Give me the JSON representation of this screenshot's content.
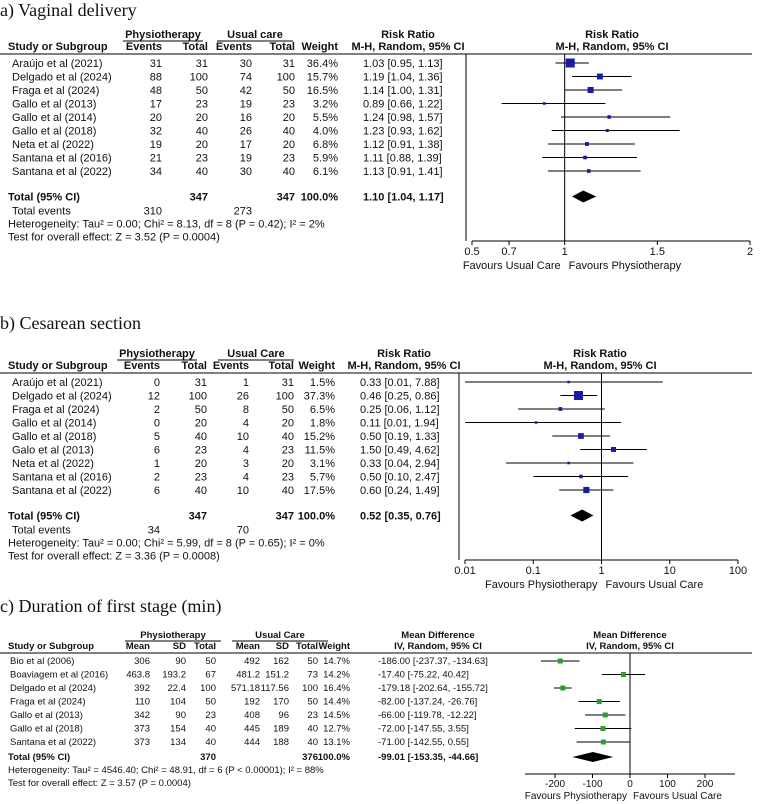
{
  "chart_data": [
    {
      "type": "forest",
      "title": "a) Vaginal delivery",
      "group1": "Physiotherapy",
      "group2": "Usual care",
      "headers": {
        "study": "Study or Subgroup",
        "events": "Events",
        "total": "Total",
        "weight": "Weight",
        "rr_title": "Risk Ratio",
        "rr_method": "M-H, Random, 95% CI"
      },
      "rows": [
        {
          "study": "Araújo et al (2021)",
          "e1": "31",
          "t1": "31",
          "e2": "30",
          "t2": "31",
          "weight": "36.4%",
          "ci_text": "1.03 [0.95, 1.13]",
          "est": 1.03,
          "lo": 0.95,
          "hi": 1.13,
          "w": 36.4
        },
        {
          "study": "Delgado et al (2024)",
          "e1": "88",
          "t1": "100",
          "e2": "74",
          "t2": "100",
          "weight": "15.7%",
          "ci_text": "1.19 [1.04, 1.36]",
          "est": 1.19,
          "lo": 1.04,
          "hi": 1.36,
          "w": 15.7
        },
        {
          "study": "Fraga et al (2024)",
          "e1": "48",
          "t1": "50",
          "e2": "42",
          "t2": "50",
          "weight": "16.5%",
          "ci_text": "1.14 [1.00, 1.31]",
          "est": 1.14,
          "lo": 1.0,
          "hi": 1.31,
          "w": 16.5
        },
        {
          "study": "Gallo et al (2013)",
          "e1": "17",
          "t1": "23",
          "e2": "19",
          "t2": "23",
          "weight": "3.2%",
          "ci_text": "0.89 [0.66, 1.22]",
          "est": 0.89,
          "lo": 0.66,
          "hi": 1.22,
          "w": 3.2
        },
        {
          "study": "Gallo et al (2014)",
          "e1": "20",
          "t1": "20",
          "e2": "16",
          "t2": "20",
          "weight": "5.5%",
          "ci_text": "1.24 [0.98, 1.57]",
          "est": 1.24,
          "lo": 0.98,
          "hi": 1.57,
          "w": 5.5
        },
        {
          "study": "Gallo et al (2018)",
          "e1": "32",
          "t1": "40",
          "e2": "26",
          "t2": "40",
          "weight": "4.0%",
          "ci_text": "1.23 [0.93, 1.62]",
          "est": 1.23,
          "lo": 0.93,
          "hi": 1.62,
          "w": 4.0
        },
        {
          "study": "Neta et al (2022)",
          "e1": "19",
          "t1": "20",
          "e2": "17",
          "t2": "20",
          "weight": "6.8%",
          "ci_text": "1.12 [0.91, 1.38]",
          "est": 1.12,
          "lo": 0.91,
          "hi": 1.38,
          "w": 6.8
        },
        {
          "study": "Santana et al (2016)",
          "e1": "21",
          "t1": "23",
          "e2": "19",
          "t2": "23",
          "weight": "5.9%",
          "ci_text": "1.11 [0.88, 1.39]",
          "est": 1.11,
          "lo": 0.88,
          "hi": 1.39,
          "w": 5.9
        },
        {
          "study": "Santana et al (2022)",
          "e1": "34",
          "t1": "40",
          "e2": "30",
          "t2": "40",
          "weight": "6.1%",
          "ci_text": "1.13 [0.91, 1.41]",
          "est": 1.13,
          "lo": 0.91,
          "hi": 1.41,
          "w": 6.1
        }
      ],
      "total": {
        "label": "Total (95% CI)",
        "t1": "347",
        "t2": "347",
        "weight": "100.0%",
        "ci_text": "1.10 [1.04, 1.17]",
        "est": 1.1,
        "lo": 1.04,
        "hi": 1.17
      },
      "total_events": {
        "label": "Total events",
        "e1": "310",
        "e2": "273"
      },
      "heterogeneity": "Heterogeneity: Tau² = 0.00; Chi² = 8.13, df = 8 (P = 0.42); I² = 2%",
      "overall": "Test for overall effect: Z = 3.52 (P = 0.0004)",
      "axis": {
        "scale": "linear",
        "min": 0.5,
        "max": 2,
        "ticks": [
          0.5,
          0.7,
          1,
          1.5,
          2
        ],
        "tick_labels": [
          "0.5",
          "0.7",
          "1",
          "1.5",
          "2"
        ],
        "null": 1
      },
      "favours_left": "Favours Usual Care",
      "favours_right": "Favours Physiotherapy"
    },
    {
      "type": "forest",
      "title": "b) Cesarean section",
      "group1": "Physiotherapy",
      "group2": "Usual Care",
      "headers": {
        "study": "Study or Subgroup",
        "events": "Events",
        "total": "Total",
        "weight": "Weight",
        "rr_title": "Risk Ratio",
        "rr_method": "M-H, Random, 95% CI"
      },
      "rows": [
        {
          "study": "Araújo et al (2021)",
          "e1": "0",
          "t1": "31",
          "e2": "1",
          "t2": "31",
          "weight": "1.5%",
          "ci_text": "0.33 [0.01, 7.88]",
          "est": 0.33,
          "lo": 0.01,
          "hi": 7.88,
          "w": 1.5
        },
        {
          "study": "Delgado et al (2024)",
          "e1": "12",
          "t1": "100",
          "e2": "26",
          "t2": "100",
          "weight": "37.3%",
          "ci_text": "0.46 [0.25, 0.86]",
          "est": 0.46,
          "lo": 0.25,
          "hi": 0.86,
          "w": 37.3
        },
        {
          "study": "Fraga et al (2024)",
          "e1": "2",
          "t1": "50",
          "e2": "8",
          "t2": "50",
          "weight": "6.5%",
          "ci_text": "0.25 [0.06, 1.12]",
          "est": 0.25,
          "lo": 0.06,
          "hi": 1.12,
          "w": 6.5
        },
        {
          "study": "Gallo et al (2014)",
          "e1": "0",
          "t1": "20",
          "e2": "4",
          "t2": "20",
          "weight": "1.8%",
          "ci_text": "0.11 [0.01, 1.94]",
          "est": 0.11,
          "lo": 0.01,
          "hi": 1.94,
          "w": 1.8
        },
        {
          "study": "Gallo et al (2018)",
          "e1": "5",
          "t1": "40",
          "e2": "10",
          "t2": "40",
          "weight": "15.2%",
          "ci_text": "0.50 [0.19, 1.33]",
          "est": 0.5,
          "lo": 0.19,
          "hi": 1.33,
          "w": 15.2
        },
        {
          "study": "Galo et al (2013)",
          "e1": "6",
          "t1": "23",
          "e2": "4",
          "t2": "23",
          "weight": "11.5%",
          "ci_text": "1.50 [0.49, 4.62]",
          "est": 1.5,
          "lo": 0.49,
          "hi": 4.62,
          "w": 11.5
        },
        {
          "study": "Neta et al (2022)",
          "e1": "1",
          "t1": "20",
          "e2": "3",
          "t2": "20",
          "weight": "3.1%",
          "ci_text": "0.33 [0.04, 2.94]",
          "est": 0.33,
          "lo": 0.04,
          "hi": 2.94,
          "w": 3.1
        },
        {
          "study": "Santana et al (2016)",
          "e1": "2",
          "t1": "23",
          "e2": "4",
          "t2": "23",
          "weight": "5.7%",
          "ci_text": "0.50 [0.10, 2.47]",
          "est": 0.5,
          "lo": 0.1,
          "hi": 2.47,
          "w": 5.7
        },
        {
          "study": "Santana et al (2022)",
          "e1": "6",
          "t1": "40",
          "e2": "10",
          "t2": "40",
          "weight": "17.5%",
          "ci_text": "0.60 [0.24, 1.49]",
          "est": 0.6,
          "lo": 0.24,
          "hi": 1.49,
          "w": 17.5
        }
      ],
      "total": {
        "label": "Total (95% CI)",
        "t1": "347",
        "t2": "347",
        "weight": "100.0%",
        "ci_text": "0.52 [0.35, 0.76]",
        "est": 0.52,
        "lo": 0.35,
        "hi": 0.76
      },
      "total_events": {
        "label": "Total events",
        "e1": "34",
        "e2": "70"
      },
      "heterogeneity": "Heterogeneity: Tau² = 0.00; Chi² = 5.99, df = 8 (P = 0.65); I² = 0%",
      "overall": "Test for overall effect: Z = 3.36 (P = 0.0008)",
      "axis": {
        "scale": "log",
        "min": 0.01,
        "max": 100,
        "ticks": [
          0.01,
          0.1,
          1,
          10,
          100
        ],
        "tick_labels": [
          "0.01",
          "0.1",
          "1",
          "10",
          "100"
        ],
        "null": 1
      },
      "favours_left": "Favours Physiotherapy",
      "favours_right": "Favours Usual Care"
    },
    {
      "type": "forest",
      "title": "c) Duration of first stage (min)",
      "group1": "Physiotherapy",
      "group2": "Usual Care",
      "headers": {
        "study": "Study or Subgroup",
        "mean": "Mean",
        "sd": "SD",
        "total": "Total",
        "weight": "Weight",
        "md_title": "Mean Difference",
        "md_method": "IV, Random, 95% CI"
      },
      "rows": [
        {
          "study": "Bio et al (2006)",
          "m1": "306",
          "sd1": "90",
          "n1": "50",
          "m2": "492",
          "sd2": "162",
          "n2": "50",
          "weight": "14.7%",
          "ci_text": "-186.00 [-237.37, -134.63]",
          "est": -186.0,
          "lo": -237.37,
          "hi": -134.63
        },
        {
          "study": "Boaviagem et al (2016)",
          "m1": "463.8",
          "sd1": "193.2",
          "n1": "67",
          "m2": "481.2",
          "sd2": "151.2",
          "n2": "73",
          "weight": "14.2%",
          "ci_text": "-17.40 [-75.22, 40.42]",
          "est": -17.4,
          "lo": -75.22,
          "hi": 40.42
        },
        {
          "study": "Delgado et al (2024)",
          "m1": "392",
          "sd1": "22.4",
          "n1": "100",
          "m2": "571.18",
          "sd2": "117.56",
          "n2": "100",
          "weight": "16.4%",
          "ci_text": "-179.18 [-202.64, -155.72]",
          "est": -179.18,
          "lo": -202.64,
          "hi": -155.72
        },
        {
          "study": "Fraga et al (2024)",
          "m1": "110",
          "sd1": "104",
          "n1": "50",
          "m2": "192",
          "sd2": "170",
          "n2": "50",
          "weight": "14.4%",
          "ci_text": "-82.00 [-137.24, -26.76]",
          "est": -82.0,
          "lo": -137.24,
          "hi": -26.76
        },
        {
          "study": "Gallo et al (2013)",
          "m1": "342",
          "sd1": "90",
          "n1": "23",
          "m2": "408",
          "sd2": "96",
          "n2": "23",
          "weight": "14.5%",
          "ci_text": "-66.00 [-119.78, -12.22]",
          "est": -66.0,
          "lo": -119.78,
          "hi": -12.22
        },
        {
          "study": "Gallo et al (2018)",
          "m1": "373",
          "sd1": "154",
          "n1": "40",
          "m2": "445",
          "sd2": "189",
          "n2": "40",
          "weight": "12.7%",
          "ci_text": "-72.00 [-147.55, 3.55]",
          "est": -72.0,
          "lo": -147.55,
          "hi": 3.55
        },
        {
          "study": "Santana et al (2022)",
          "m1": "373",
          "sd1": "134",
          "n1": "40",
          "m2": "444",
          "sd2": "188",
          "n2": "40",
          "weight": "13.1%",
          "ci_text": "-71.00 [-142.55, 0.55]",
          "est": -71.0,
          "lo": -142.55,
          "hi": 0.55
        }
      ],
      "total": {
        "label": "Total (95% CI)",
        "n1": "370",
        "n2": "376",
        "weight": "100.0%",
        "ci_text": "-99.01 [-153.35, -44.66]",
        "est": -99.01,
        "lo": -153.35,
        "hi": -44.66
      },
      "heterogeneity": "Heterogeneity: Tau² = 4546.40; Chi² = 48.91, df = 6 (P < 0.00001); I² = 88%",
      "overall": "Test for overall effect: Z = 3.57 (P = 0.0004)",
      "axis": {
        "scale": "linear",
        "min": -280,
        "max": 280,
        "ticks": [
          -200,
          -100,
          0,
          100,
          200
        ],
        "tick_labels": [
          "-200",
          "-100",
          "0",
          "100",
          "200"
        ],
        "null": 0
      },
      "favours_left": "Favours Physiotherapy",
      "favours_right": "Favours Usual Care"
    }
  ],
  "colors": {
    "square_a": "#1a1aa8",
    "square_b": "#1a1aa8",
    "square_c": "#2aa02a",
    "line": "#000000"
  }
}
